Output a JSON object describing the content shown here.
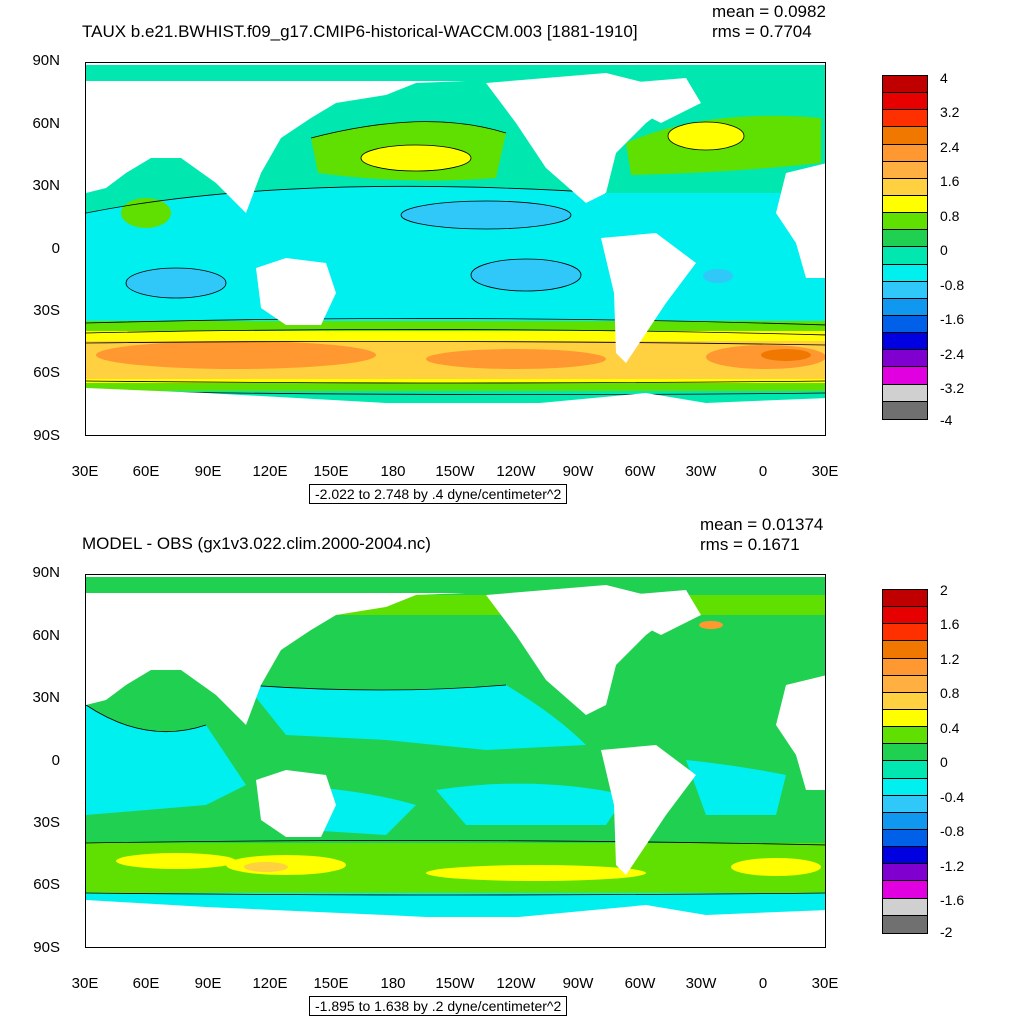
{
  "panels": [
    {
      "title": "TAUX b.e21.BWHIST.f09_g17.CMIP6-historical-WACCM.003 [1881-1910]",
      "mean": "mean = 0.0982",
      "rms": "rms = 0.7704",
      "range": "-2.022 to 2.748 by .4 dyne/centimeter^2",
      "colorbar_labels": [
        "4",
        "3.2",
        "2.4",
        "1.6",
        "0.8",
        "0",
        "-0.8",
        "-1.6",
        "-2.4",
        "-3.2",
        "-4"
      ],
      "colorbar_colors": [
        "#c00000",
        "#e60000",
        "#ff3000",
        "#f07800",
        "#ff9830",
        "#ffb040",
        "#ffd040",
        "#ffff00",
        "#60e000",
        "#20d050",
        "#00e8b0",
        "#00f0f0",
        "#30c8f8",
        "#1098f0",
        "#0060e8",
        "#0000e0",
        "#8000d0",
        "#e000e0",
        "#d0d0d0",
        "#707070"
      ]
    },
    {
      "title": "MODEL - OBS (gx1v3.022.clim.2000-2004.nc)",
      "mean": "mean = 0.01374",
      "rms": "rms = 0.1671",
      "range": "-1.895 to 1.638 by .2 dyne/centimeter^2",
      "colorbar_labels": [
        "2",
        "1.6",
        "1.2",
        "0.8",
        "0.4",
        "0",
        "-0.4",
        "-0.8",
        "-1.2",
        "-1.6",
        "-2"
      ],
      "colorbar_colors": [
        "#c00000",
        "#e60000",
        "#ff3000",
        "#f07800",
        "#ff9830",
        "#ffb040",
        "#ffd040",
        "#ffff00",
        "#60e000",
        "#20d050",
        "#00e8b0",
        "#00f0f0",
        "#30c8f8",
        "#1098f0",
        "#0060e8",
        "#0000e0",
        "#8000d0",
        "#e000e0",
        "#d0d0d0",
        "#707070"
      ]
    }
  ],
  "lat_labels": [
    "90N",
    "60N",
    "30N",
    "0",
    "30S",
    "60S",
    "90S"
  ],
  "lon_labels": [
    "30E",
    "60E",
    "90E",
    "120E",
    "150E",
    "180",
    "150W",
    "120W",
    "90W",
    "60W",
    "30W",
    "0",
    "30E"
  ]
}
